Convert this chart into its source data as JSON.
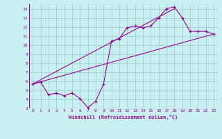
{
  "xlabel": "Windchill (Refroidissement éolien,°C)",
  "bg_color": "#c8f0f0",
  "line_color": "#990099",
  "grid_color": "#99cccc",
  "xlim": [
    -0.5,
    23.5
  ],
  "ylim": [
    3,
    14.5
  ],
  "xticks": [
    0,
    1,
    2,
    3,
    4,
    5,
    6,
    7,
    8,
    9,
    10,
    11,
    12,
    13,
    14,
    15,
    16,
    17,
    18,
    19,
    20,
    21,
    22,
    23
  ],
  "yticks": [
    3,
    4,
    5,
    6,
    7,
    8,
    9,
    10,
    11,
    12,
    13,
    14
  ],
  "line1_x": [
    0,
    1,
    2,
    3,
    4,
    5,
    6,
    7,
    8,
    9,
    10,
    11,
    12,
    13,
    14,
    15,
    16,
    17,
    18,
    19,
    20,
    21,
    22,
    23
  ],
  "line1_y": [
    5.7,
    5.9,
    4.5,
    4.7,
    4.4,
    4.7,
    4.1,
    3.1,
    3.8,
    5.7,
    10.4,
    10.7,
    11.9,
    12.1,
    11.9,
    12.1,
    13.0,
    14.0,
    14.2,
    13.0,
    11.5,
    11.5,
    11.5,
    11.2
  ],
  "line2_x": [
    0,
    23
  ],
  "line2_y": [
    5.7,
    11.2
  ],
  "line3_x": [
    0,
    18
  ],
  "line3_y": [
    5.7,
    14.0
  ]
}
